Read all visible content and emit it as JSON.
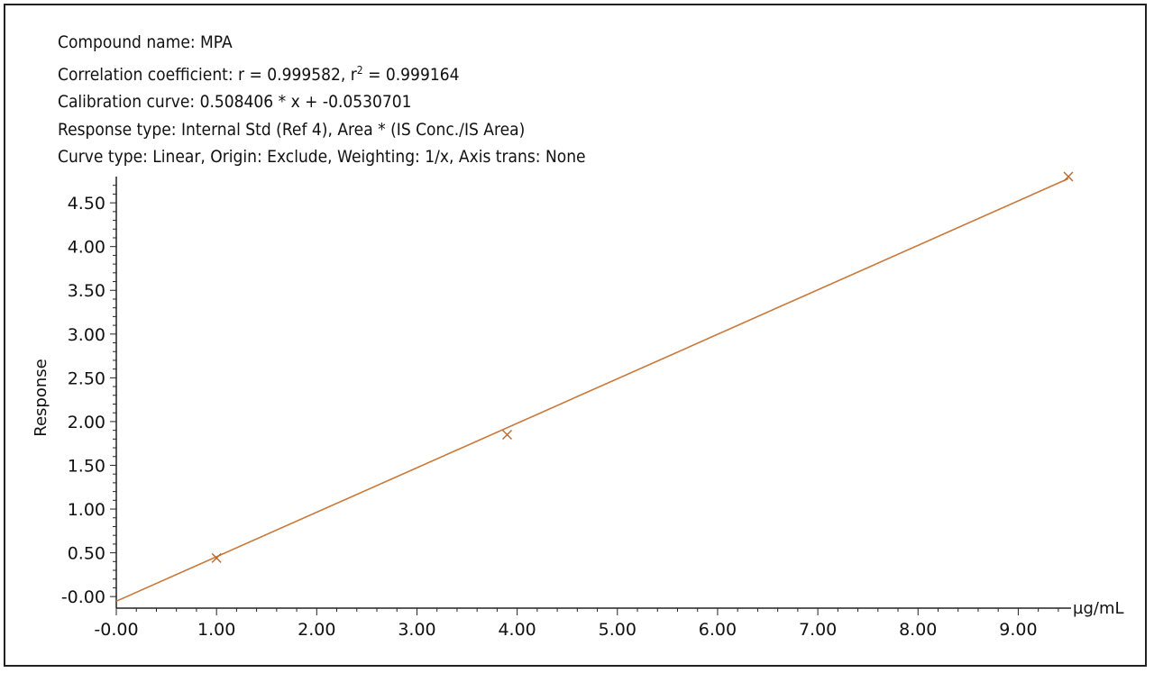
{
  "header": {
    "compound_label": "Compound name: MPA",
    "correlation_prefix": "Correlation coefficient: r = 0.999582, r",
    "correlation_sup": "2",
    "correlation_suffix": " = 0.999164",
    "calibration_label": "Calibration curve: 0.508406 * x + -0.0530701",
    "response_type_label": "Response type: Internal Std (Ref 4), Area * (IS Conc./IS Area)",
    "curve_type_label": "Curve type: Linear, Origin: Exclude, Weighting: 1/x, Axis trans: None"
  },
  "colors": {
    "curve": "#c9783a",
    "marker": "#b86a2e",
    "axis": "#222222"
  },
  "chart_data": {
    "type": "scatter",
    "xlabel": "µg/mL",
    "ylabel": "Response",
    "xlim": [
      0,
      9.5
    ],
    "ylim": [
      -0.05,
      4.8
    ],
    "x_ticks": [
      0,
      1,
      2,
      3,
      4,
      5,
      6,
      7,
      8,
      9
    ],
    "x_tick_labels": [
      "-0.00",
      "1.00",
      "2.00",
      "3.00",
      "4.00",
      "5.00",
      "6.00",
      "7.00",
      "8.00",
      "9.00"
    ],
    "y_ticks": [
      0,
      0.5,
      1,
      1.5,
      2,
      2.5,
      3,
      3.5,
      4,
      4.5
    ],
    "y_tick_labels": [
      "-0.00",
      "0.50",
      "1.00",
      "1.50",
      "2.00",
      "2.50",
      "3.00",
      "3.50",
      "4.00",
      "4.50"
    ],
    "points": [
      {
        "x": 1.0,
        "y": 0.44
      },
      {
        "x": 3.9,
        "y": 1.85
      },
      {
        "x": 9.5,
        "y": 4.8
      }
    ],
    "fit": {
      "slope": 0.508406,
      "intercept": -0.0530701,
      "x_range": [
        0,
        9.5
      ]
    },
    "grid": false,
    "legend": "none"
  }
}
